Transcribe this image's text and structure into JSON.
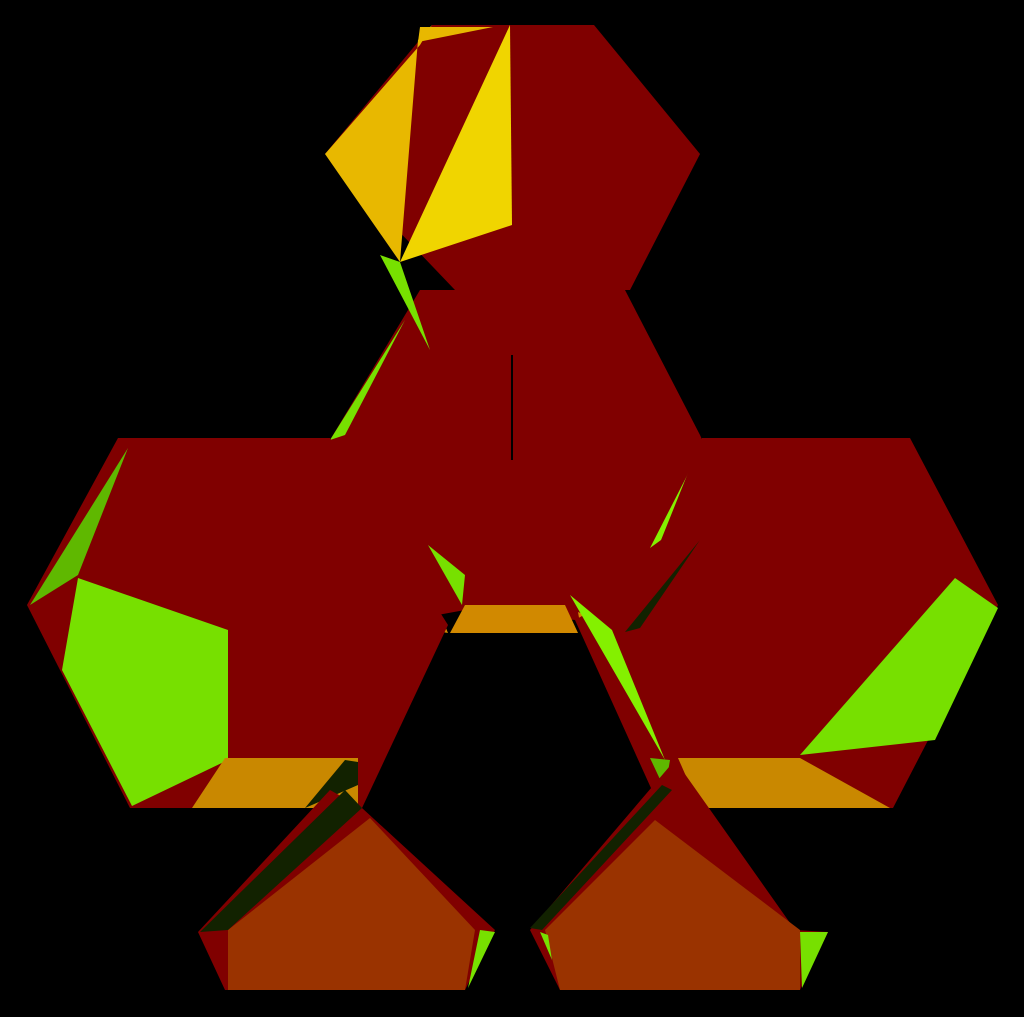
{
  "scene": {
    "background_color": "#000000",
    "palette": {
      "maroon": "#800000",
      "gold": "#e8b800",
      "yellow": "#f0d500",
      "lime": "#77e000",
      "bright_lime": "#84f000",
      "dark_lime": "#5fb800",
      "orange": "#d18900",
      "amber": "#c98800",
      "rust": "#9a3300",
      "dark_green": "#122200"
    }
  }
}
